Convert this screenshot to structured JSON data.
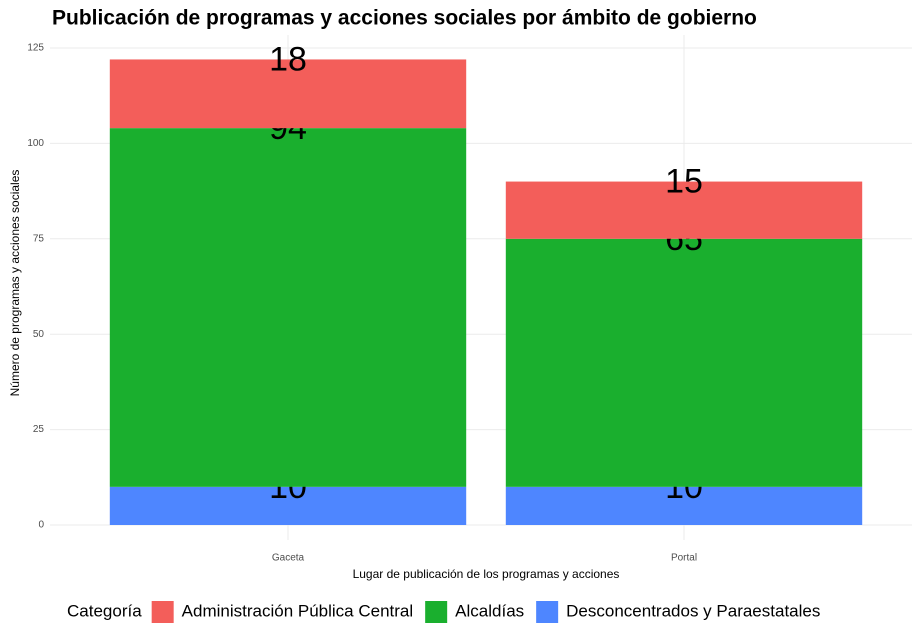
{
  "chart_data": {
    "type": "stacked_bar",
    "title": "Publicación de programas y acciones sociales por ámbito de gobierno",
    "x_label": "Lugar de publicación de los programas y acciones",
    "y_label": "Número de programas y acciones sociales",
    "legend_title": "Categoría",
    "categories": [
      "Gaceta",
      "Portal"
    ],
    "series": [
      {
        "name": "Administración Pública Central",
        "color": "#f35e5a",
        "values": [
          18,
          15
        ]
      },
      {
        "name": "Alcaldías",
        "color": "#1aaf2e",
        "values": [
          94,
          65
        ]
      },
      {
        "name": "Desconcentrados y Paraestatales",
        "color": "#4e86ff",
        "values": [
          10,
          10
        ]
      }
    ],
    "ylim": [
      0,
      125
    ],
    "yticks": [
      0,
      25,
      50,
      75,
      100,
      125
    ],
    "grid": true,
    "legend_position": "bottom"
  }
}
